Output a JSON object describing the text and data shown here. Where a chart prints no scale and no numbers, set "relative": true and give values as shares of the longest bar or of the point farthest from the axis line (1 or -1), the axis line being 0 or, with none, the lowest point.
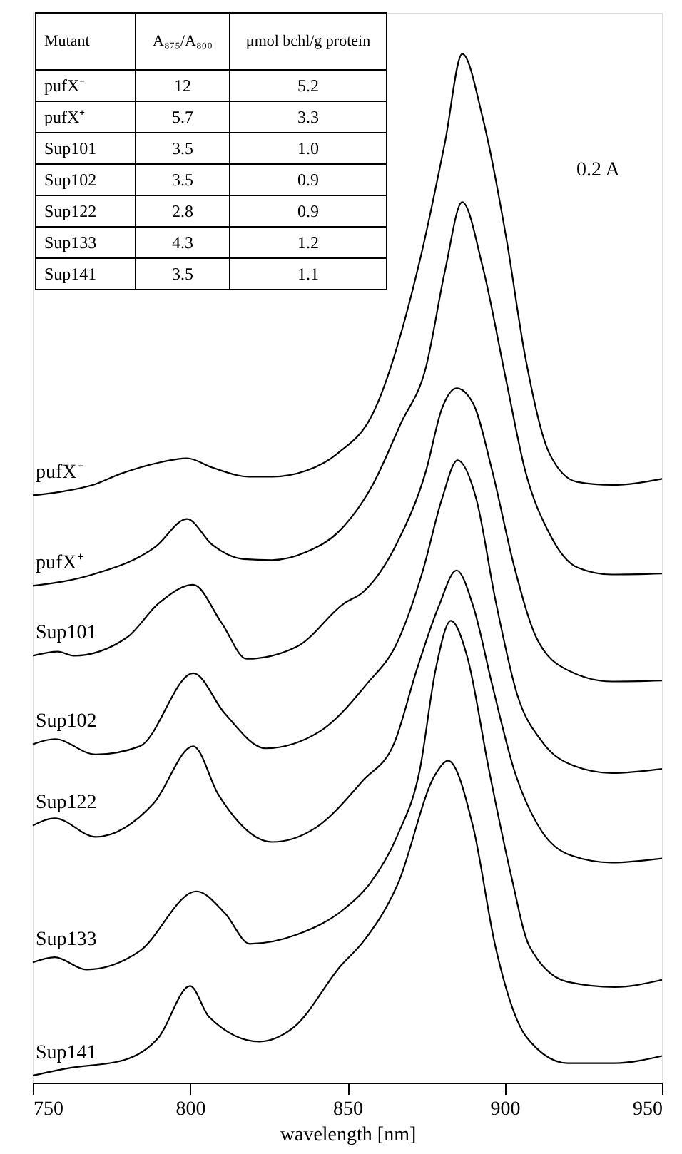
{
  "chart_data": {
    "type": "line",
    "relative": true,
    "xlabel": "wavelength [nm]",
    "xlim": [
      750,
      950
    ],
    "xticks": [
      750,
      800,
      850,
      900,
      950
    ],
    "series": [
      {
        "name": "pufX⁻",
        "color": "#000000",
        "x": [
          750,
          758,
          769,
          778,
          789,
          799,
          807,
          819,
          826,
          837,
          847,
          858,
          873,
          881,
          886.5,
          893,
          900.5,
          906.5,
          914,
          923,
          934,
          950
        ],
        "values": [
          0.571,
          0.574,
          0.581,
          0.592,
          0.602,
          0.607,
          0.598,
          0.589,
          0.589,
          0.595,
          0.612,
          0.65,
          0.799,
          0.914,
          1.0,
          0.938,
          0.821,
          0.706,
          0.613,
          0.584,
          0.581,
          0.587
        ]
      },
      {
        "name": "pufX⁺",
        "color": "#000000",
        "x": [
          750,
          769,
          789,
          799,
          807,
          817,
          826,
          837,
          847,
          858,
          867,
          875,
          881,
          886.5,
          893,
          900.5,
          906.5,
          914,
          923,
          934,
          950
        ],
        "values": [
          0.483,
          0.494,
          0.521,
          0.548,
          0.523,
          0.509,
          0.508,
          0.516,
          0.535,
          0.581,
          0.641,
          0.696,
          0.789,
          0.856,
          0.793,
          0.682,
          0.595,
          0.535,
          0.501,
          0.494,
          0.495
        ]
      },
      {
        "name": "Sup101",
        "color": "#000000",
        "x": [
          750,
          758,
          763,
          780,
          790,
          801,
          810,
          818,
          834,
          849,
          855,
          866,
          875,
          880,
          884.7,
          890,
          896,
          903,
          910,
          920,
          934,
          950
        ],
        "values": [
          0.415,
          0.419,
          0.415,
          0.433,
          0.466,
          0.484,
          0.447,
          0.412,
          0.424,
          0.466,
          0.477,
          0.526,
          0.595,
          0.655,
          0.675,
          0.66,
          0.595,
          0.502,
          0.433,
          0.401,
          0.39,
          0.391
        ]
      },
      {
        "name": "Sup102",
        "color": "#000000",
        "x": [
          750,
          757,
          770,
          784,
          801,
          811,
          824,
          841,
          856,
          866,
          874,
          880,
          885,
          891,
          897,
          904,
          912,
          922,
          934,
          950
        ],
        "values": [
          0.329,
          0.334,
          0.319,
          0.327,
          0.398,
          0.359,
          0.325,
          0.341,
          0.387,
          0.429,
          0.498,
          0.567,
          0.605,
          0.567,
          0.47,
          0.377,
          0.331,
          0.308,
          0.301,
          0.305
        ]
      },
      {
        "name": "Sup122",
        "color": "#000000",
        "x": [
          750,
          757,
          770,
          788.5,
          801,
          809,
          826,
          840,
          855,
          865,
          872,
          879,
          884.7,
          890,
          896,
          903,
          911,
          921,
          934,
          950
        ],
        "values": [
          0.25,
          0.257,
          0.239,
          0.272,
          0.327,
          0.28,
          0.234,
          0.248,
          0.294,
          0.331,
          0.401,
          0.463,
          0.498,
          0.463,
          0.387,
          0.304,
          0.248,
          0.221,
          0.214,
          0.218
        ]
      },
      {
        "name": "Sup133",
        "color": "#000000",
        "x": [
          750,
          757,
          767,
          784,
          802,
          811,
          819,
          834,
          849,
          857,
          866,
          873,
          878,
          882.9,
          888,
          895,
          902,
          907.8,
          920,
          935,
          950
        ],
        "values": [
          0.117,
          0.122,
          0.11,
          0.128,
          0.186,
          0.165,
          0.135,
          0.144,
          0.169,
          0.193,
          0.241,
          0.304,
          0.401,
          0.449,
          0.415,
          0.304,
          0.202,
          0.133,
          0.098,
          0.093,
          0.1
        ]
      },
      {
        "name": "Sup141",
        "color": "#000000",
        "x": [
          750,
          761,
          779,
          790,
          800,
          806,
          822,
          833,
          848,
          855,
          866,
          878,
          882,
          890,
          897,
          907,
          920,
          935,
          950
        ],
        "values": [
          0.007,
          0.014,
          0.022,
          0.044,
          0.094,
          0.064,
          0.04,
          0.054,
          0.114,
          0.137,
          0.193,
          0.3,
          0.313,
          0.248,
          0.133,
          0.044,
          0.019,
          0.019,
          0.026
        ]
      }
    ],
    "annotations": [
      "Mutant",
      "A₈₇₅/A₈₀₀",
      "μmol bchl/g protein",
      "pufX⁻",
      "12",
      "5.2",
      "pufX⁺",
      "5.7",
      "3.3",
      "Sup101",
      "3.5",
      "1.0",
      "Sup102",
      "3.5",
      "0.9",
      "Sup122",
      "2.8",
      "0.9",
      "Sup133",
      "4.3",
      "1.2",
      "Sup141",
      "3.5",
      "1.1",
      "0.2 A"
    ]
  }
}
